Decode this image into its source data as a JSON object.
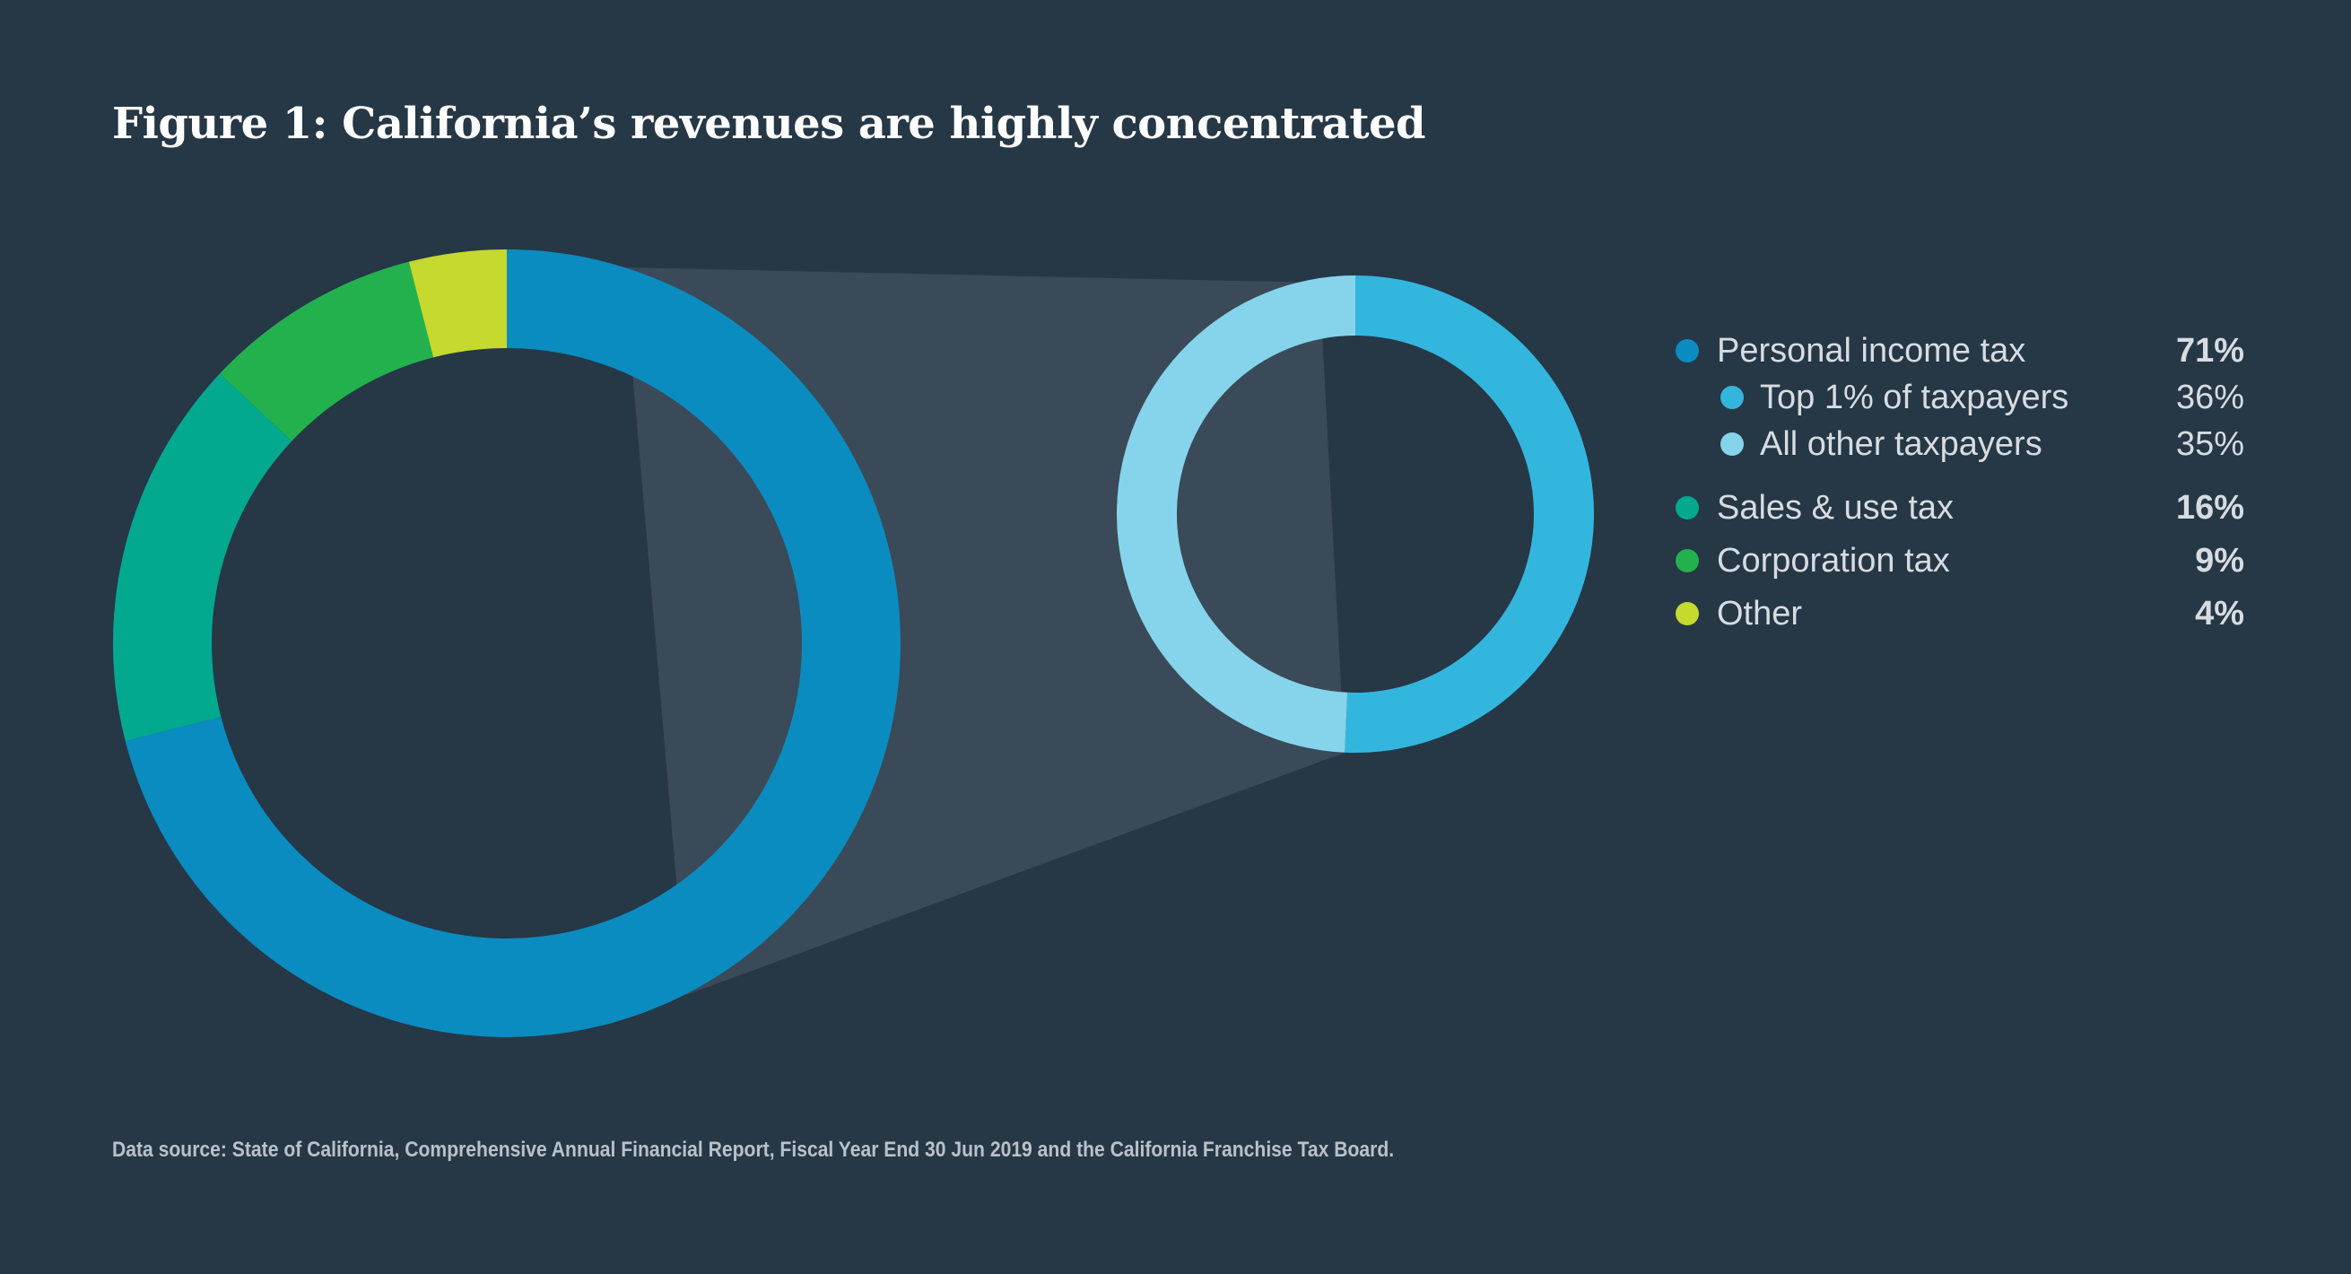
{
  "title": "Figure 1: California’s revenues are highly concentrated",
  "source": "Data source: State of California, Comprehensive Annual Financial Report, Fiscal Year End 30 Jun 2019 and the California Franchise Tax Board.",
  "chart_data": [
    {
      "type": "pie",
      "title": "",
      "donut": true,
      "slices": [
        {
          "label": "Personal income tax",
          "value": 71,
          "display": "71%",
          "color": "#0a8cc0"
        },
        {
          "label": "Sales & use tax",
          "value": 16,
          "display": "16%",
          "color": "#02a98f"
        },
        {
          "label": "Corporation tax",
          "value": 9,
          "display": "9%",
          "color": "#23b14e"
        },
        {
          "label": "Other",
          "value": 4,
          "display": "4%",
          "color": "#c5d92e"
        }
      ]
    },
    {
      "type": "pie",
      "title": "",
      "donut": true,
      "detail_of": "Personal income tax",
      "slices": [
        {
          "label": "Top 1% of taxpayers",
          "value": 36,
          "display": "36%",
          "color": "#33b6de"
        },
        {
          "label": "All other taxpayers",
          "value": 35,
          "display": "35%",
          "color": "#86d3ec"
        }
      ]
    }
  ],
  "legend": {
    "placement": "right",
    "items": [
      {
        "label": "Personal income tax",
        "value": "71%",
        "color": "#0a8cc0",
        "sub": false
      },
      {
        "label": "Top 1% of taxpayers",
        "value": "36%",
        "color": "#33b6de",
        "sub": true
      },
      {
        "label": "All other taxpayers",
        "value": "35%",
        "color": "#86d3ec",
        "sub": true
      },
      {
        "label": "Sales & use tax",
        "value": "16%",
        "color": "#02a98f",
        "sub": false
      },
      {
        "label": "Corporation tax",
        "value": "9%",
        "color": "#23b14e",
        "sub": false
      },
      {
        "label": "Other",
        "value": "4%",
        "color": "#c5d92e",
        "sub": false
      }
    ]
  },
  "colors": {
    "background": "#263746",
    "connector": "#3a4a58"
  }
}
